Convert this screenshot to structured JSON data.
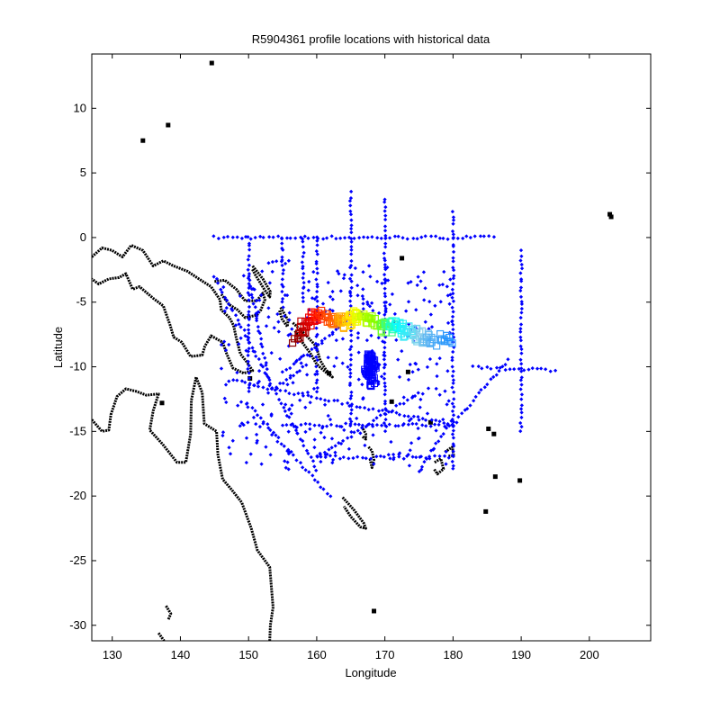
{
  "chart_data": {
    "type": "scatter",
    "title": "R5904361 profile locations with historical data",
    "xlabel": "Longitude",
    "ylabel": "Latitude",
    "xlim": [
      127,
      209
    ],
    "ylim": [
      -31.2,
      14.2
    ],
    "xticks": [
      130,
      140,
      150,
      160,
      170,
      180,
      190,
      200
    ],
    "yticks": [
      10,
      5,
      0,
      -5,
      -10,
      -15,
      -20,
      -25,
      -30
    ],
    "xtick_labels": [
      "130",
      "140",
      "150",
      "160",
      "170",
      "180",
      "190",
      "200"
    ],
    "ytick_labels": [
      "10",
      "5",
      "0",
      "-5",
      "-10",
      "-15",
      "-20",
      "-25",
      "-30"
    ],
    "grid": false,
    "legend": "none",
    "colors": {
      "coastline": "#000000",
      "historical": "#0000ff",
      "profile_gradient": [
        "#8b0000",
        "#ff0000",
        "#ff8c00",
        "#ffff00",
        "#7cfc00",
        "#00ffff",
        "#87ceeb",
        "#1e90ff"
      ]
    },
    "series": [
      {
        "kind": "coastline",
        "lines": [
          [
            [
              127,
              -1.5
            ],
            [
              128.5,
              -0.8
            ],
            [
              130,
              -1
            ],
            [
              131.5,
              -1.5
            ],
            [
              132.8,
              -0.6
            ],
            [
              134.5,
              -1
            ],
            [
              136,
              -2.2
            ],
            [
              137.5,
              -1.8
            ],
            [
              139,
              -2.2
            ],
            [
              141,
              -2.6
            ],
            [
              143,
              -3.3
            ],
            [
              144.5,
              -3.8
            ],
            [
              145.8,
              -4.8
            ],
            [
              146,
              -5.6
            ],
            [
              147.2,
              -6.2
            ],
            [
              147.8,
              -6.8
            ],
            [
              148.2,
              -7.8
            ],
            [
              148.8,
              -9
            ],
            [
              149.7,
              -9.6
            ],
            [
              150.6,
              -10.3
            ],
            [
              149.3,
              -10.5
            ],
            [
              147.7,
              -10.1
            ],
            [
              146.8,
              -9
            ],
            [
              146.2,
              -8.1
            ],
            [
              144.5,
              -7.6
            ],
            [
              143.6,
              -8.4
            ],
            [
              143.2,
              -9.1
            ],
            [
              141.5,
              -9.2
            ],
            [
              140.2,
              -8.1
            ],
            [
              139,
              -7.7
            ],
            [
              138.5,
              -6.8
            ],
            [
              137.5,
              -5.3
            ],
            [
              136,
              -4.7
            ],
            [
              134,
              -3.8
            ],
            [
              133,
              -4
            ],
            [
              132,
              -2.8
            ],
            [
              131,
              -3.1
            ],
            [
              129.5,
              -3.2
            ],
            [
              128,
              -3.6
            ],
            [
              127,
              -3.2
            ]
          ],
          [
            [
              127,
              -14.1
            ],
            [
              128.5,
              -15
            ],
            [
              129.5,
              -14.9
            ],
            [
              129.8,
              -13.7
            ],
            [
              130.7,
              -12.3
            ],
            [
              132,
              -11.7
            ],
            [
              133.5,
              -11.9
            ],
            [
              135,
              -12.2
            ],
            [
              136.8,
              -12.1
            ],
            [
              136,
              -13.4
            ],
            [
              135.5,
              -14.9
            ],
            [
              137.4,
              -16
            ],
            [
              139.5,
              -17.4
            ],
            [
              140.8,
              -17.4
            ],
            [
              141.5,
              -15.2
            ],
            [
              141.6,
              -12.6
            ],
            [
              142.3,
              -10.8
            ],
            [
              143.2,
              -12
            ],
            [
              143.5,
              -14.4
            ],
            [
              145.3,
              -15
            ],
            [
              145.5,
              -16.8
            ],
            [
              146.2,
              -18.7
            ],
            [
              147.5,
              -19.5
            ],
            [
              149,
              -20.5
            ],
            [
              150.4,
              -22.5
            ],
            [
              151.3,
              -24.2
            ],
            [
              153.1,
              -25.5
            ],
            [
              153.6,
              -28.6
            ],
            [
              153.2,
              -30
            ],
            [
              153.1,
              -31.2
            ]
          ],
          [
            [
              145,
              -3.4
            ],
            [
              146.5,
              -3.3
            ],
            [
              148.2,
              -4
            ],
            [
              149.5,
              -4.9
            ],
            [
              151.2,
              -4.9
            ],
            [
              152.1,
              -4.3
            ],
            [
              152.4,
              -4.8
            ],
            [
              151.8,
              -5.6
            ],
            [
              151.2,
              -6
            ],
            [
              149.5,
              -6.2
            ],
            [
              148.4,
              -5.6
            ],
            [
              147.2,
              -5.2
            ],
            [
              146,
              -4.4
            ]
          ],
          [
            [
              150.6,
              -2.2
            ],
            [
              152.1,
              -3.2
            ],
            [
              153.2,
              -4.2
            ],
            [
              153.1,
              -4.6
            ],
            [
              152.3,
              -4.0
            ],
            [
              151,
              -2.9
            ],
            [
              150.5,
              -2.4
            ]
          ],
          [
            [
              154.7,
              -5.4
            ],
            [
              155.8,
              -6.4
            ],
            [
              155.7,
              -6.9
            ],
            [
              154.9,
              -6.3
            ],
            [
              154.5,
              -5.6
            ]
          ],
          [
            [
              156.5,
              -6.6
            ],
            [
              158.5,
              -7.6
            ],
            [
              159.9,
              -8.4
            ],
            [
              160.5,
              -9.5
            ],
            [
              161.3,
              -10.2
            ],
            [
              162.3,
              -10.8
            ],
            [
              161.5,
              -10.5
            ],
            [
              160,
              -9.8
            ],
            [
              159,
              -8.9
            ],
            [
              158,
              -8.2
            ],
            [
              156.8,
              -7.2
            ]
          ],
          [
            [
              166.6,
              -14.6
            ],
            [
              167.2,
              -15.2
            ],
            [
              167.2,
              -15.6
            ],
            [
              166.7,
              -15.4
            ]
          ],
          [
            [
              167.6,
              -16.2
            ],
            [
              168.1,
              -16.5
            ],
            [
              168.4,
              -17.2
            ],
            [
              168.1,
              -17.8
            ],
            [
              167.8,
              -17.1
            ]
          ],
          [
            [
              163.8,
              -20.1
            ],
            [
              165.5,
              -21.1
            ],
            [
              166.9,
              -22.1
            ],
            [
              167.2,
              -22.5
            ],
            [
              166.4,
              -22.4
            ],
            [
              165,
              -21.6
            ],
            [
              164,
              -20.8
            ]
          ],
          [
            [
              177.3,
              -17.4
            ],
            [
              178.2,
              -17.1
            ],
            [
              178.6,
              -17.9
            ],
            [
              177.7,
              -18.3
            ],
            [
              177.2,
              -17.9
            ]
          ],
          [
            [
              178.8,
              -16.6
            ],
            [
              179.9,
              -16.2
            ],
            [
              180.1,
              -16.9
            ],
            [
              179.2,
              -16.9
            ]
          ],
          [
            [
              137.9,
              -28.5
            ],
            [
              138.6,
              -29.1
            ],
            [
              138.2,
              -29.6
            ]
          ],
          [
            [
              136.8,
              -30.6
            ],
            [
              137.6,
              -31.2
            ]
          ]
        ],
        "points": [
          [
            144.6,
            13.5
          ],
          [
            134.5,
            7.5
          ],
          [
            138.2,
            8.7
          ],
          [
            189.8,
            -18.8
          ],
          [
            186.2,
            -18.5
          ],
          [
            184.8,
            -21.2
          ],
          [
            203,
            1.8
          ],
          [
            203.2,
            1.6
          ],
          [
            172.5,
            -1.6
          ],
          [
            168.4,
            -28.9
          ],
          [
            161.8,
            -10.5
          ],
          [
            171,
            -12.7
          ],
          [
            176.7,
            -14.3
          ],
          [
            185.2,
            -14.8
          ],
          [
            186,
            -15.2
          ],
          [
            137.3,
            -12.8
          ],
          [
            173.4,
            -10.4
          ],
          [
            150.2,
            -10.9
          ],
          [
            160.6,
            -5.9
          ]
        ]
      },
      {
        "kind": "historical_points",
        "color": "#0000ff",
        "tracks": [
          [
            [
              145,
              0
            ],
            [
              180,
              0
            ]
          ],
          [
            [
              180,
              0
            ],
            [
              186,
              0
            ]
          ],
          [
            [
              153,
              -1.9
            ],
            [
              156,
              -1.9
            ]
          ],
          [
            [
              150,
              0
            ],
            [
              150,
              -12
            ]
          ],
          [
            [
              155,
              0
            ],
            [
              155,
              -5
            ]
          ],
          [
            [
              158,
              0
            ],
            [
              158,
              -5
            ]
          ],
          [
            [
              160,
              0
            ],
            [
              160,
              -12
            ]
          ],
          [
            [
              165,
              3.5
            ],
            [
              165,
              -15
            ]
          ],
          [
            [
              170,
              3
            ],
            [
              170,
              -15
            ]
          ],
          [
            [
              180,
              2
            ],
            [
              180,
              -18
            ]
          ],
          [
            [
              190,
              -1
            ],
            [
              190,
              -15
            ]
          ],
          [
            [
              147,
              -11
            ],
            [
              180,
              -14.5
            ]
          ],
          [
            [
              155,
              -14.5
            ],
            [
              180,
              -14.5
            ]
          ],
          [
            [
              160,
              -17
            ],
            [
              180,
              -17
            ]
          ],
          [
            [
              150,
              -3
            ],
            [
              153,
              -11
            ]
          ],
          [
            [
              155,
              -10.5
            ],
            [
              168,
              -5
            ]
          ],
          [
            [
              153,
              -12
            ],
            [
              158,
              -10
            ]
          ],
          [
            [
              160,
              -17
            ],
            [
              175,
              -12
            ]
          ],
          [
            [
              180,
              -14.5
            ],
            [
              188,
              -9.5
            ]
          ],
          [
            [
              183,
              -10
            ],
            [
              195,
              -10.3
            ]
          ],
          [
            [
              175,
              -18
            ],
            [
              180,
              -14
            ]
          ],
          [
            [
              145,
              -3
            ],
            [
              160,
              -18
            ]
          ],
          [
            [
              150,
              -13
            ],
            [
              162,
              -20
            ]
          ]
        ],
        "cluster": [
          [
            167.5,
            -9.6
          ],
          [
            168,
            -10.2
          ],
          [
            167.8,
            -10.8
          ],
          [
            168.2,
            -11.2
          ],
          [
            167.9,
            -9.2
          ],
          [
            168.4,
            -9.8
          ],
          [
            167.3,
            -10.5
          ],
          [
            168.1,
            -9.4
          ]
        ]
      },
      {
        "kind": "profile_track",
        "start": [
          157,
          -8
        ],
        "end": [
          180,
          -7.8
        ],
        "points": [
          [
            157,
            -8
          ],
          [
            158.5,
            -6.7
          ],
          [
            160,
            -6
          ],
          [
            162,
            -6.3
          ],
          [
            163.5,
            -6.6
          ],
          [
            165,
            -6.5
          ],
          [
            166,
            -6
          ],
          [
            168,
            -6.6
          ],
          [
            170,
            -7
          ],
          [
            171.5,
            -6.6
          ],
          [
            173,
            -7.2
          ],
          [
            175,
            -7.6
          ],
          [
            177,
            -8
          ],
          [
            180,
            -7.8
          ]
        ]
      }
    ]
  }
}
